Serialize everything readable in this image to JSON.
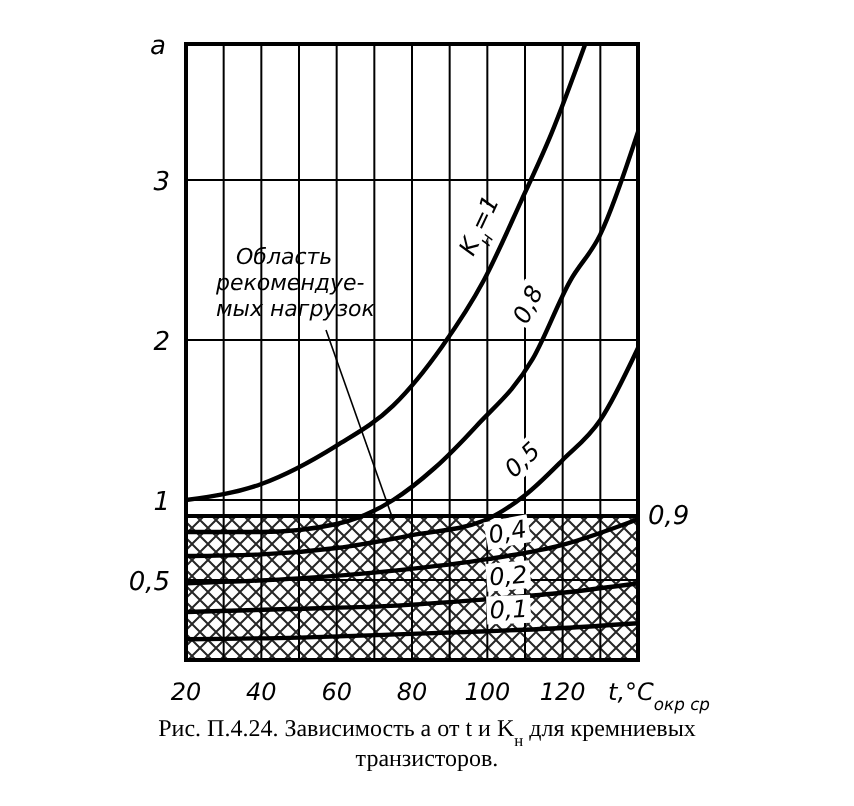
{
  "chart_data": {
    "type": "line",
    "xlabel": "t,°C$_{окр ср}$",
    "ylabel": "a",
    "annotations": [
      "Рис. П.4.24. Зависимость a от t и K$_{н}$ для кремниевых транзисторов."
    ],
    "xlim": [
      20,
      140
    ],
    "ylim": [
      0,
      3.85
    ],
    "xticks": [
      20,
      {
        "value": 30,
        "label": null
      },
      40,
      {
        "value": 50,
        "label": null
      },
      60,
      {
        "value": 70,
        "label": null
      },
      80,
      {
        "value": 90,
        "label": null
      },
      100,
      {
        "value": 110,
        "label": null
      },
      120,
      {
        "value": 130,
        "label": null
      },
      {
        "value": 140,
        "label": null
      }
    ],
    "yticks": [
      {
        "value": 0.5,
        "label": "0,5"
      },
      1,
      2,
      3
    ],
    "grid": true,
    "legend": false,
    "marker": "none",
    "line_style": "solid",
    "bands": [
      {
        "axis": "y",
        "from": 0,
        "to": 0.9,
        "label": "Область\nрекомендуе-\nмых нагрузок",
        "color": "#000000"
      }
    ],
    "ref_lines": [
      {
        "axis": "y",
        "value": 0.9,
        "label": "0,9",
        "color": "#000000"
      }
    ],
    "series": [
      {
        "name": "K$_{н}$=1",
        "color": "#000000",
        "x": [
          20,
          40,
          60,
          75,
          88,
          99,
          109,
          117,
          126
        ],
        "values": [
          1,
          1.1,
          1.34,
          1.59,
          1.96,
          2.37,
          2.87,
          3.29,
          3.85
        ]
      },
      {
        "name": "0,8",
        "color": "#000000",
        "x": [
          20,
          40,
          60,
          75,
          86,
          97,
          112,
          122,
          130,
          140
        ],
        "values": [
          0.8,
          0.8,
          0.85,
          1,
          1.2,
          1.46,
          1.88,
          2.37,
          2.66,
          3.3
        ]
      },
      {
        "name": "0,5",
        "color": "#000000",
        "x": [
          20,
          40,
          60,
          80,
          99,
          110,
          120,
          130,
          140
        ],
        "values": [
          0.65,
          0.66,
          0.7,
          0.78,
          0.87,
          1.03,
          1.25,
          1.5,
          1.95
        ]
      },
      {
        "name": "0,4",
        "color": "#000000",
        "x": [
          20,
          50,
          76,
          100,
          120,
          140
        ],
        "values": [
          0.48,
          0.51,
          0.56,
          0.63,
          0.72,
          0.88
        ]
      },
      {
        "name": "0,2",
        "color": "#000000",
        "x": [
          20,
          50,
          76,
          100,
          120,
          140
        ],
        "values": [
          0.3,
          0.32,
          0.34,
          0.38,
          0.42,
          0.48
        ]
      },
      {
        "name": "0,1",
        "color": "#000000",
        "x": [
          20,
          50,
          76,
          100,
          120,
          140
        ],
        "values": [
          0.13,
          0.14,
          0.16,
          0.18,
          0.2,
          0.23
        ]
      }
    ]
  }
}
